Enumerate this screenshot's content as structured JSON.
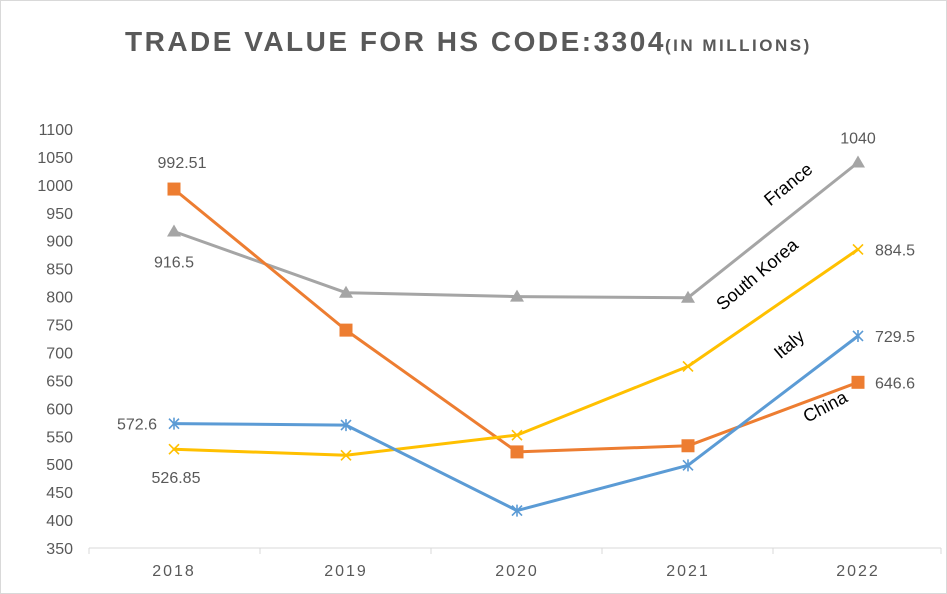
{
  "chart_data": {
    "type": "line",
    "title": "TRADE VALUE FOR HS CODE:3304",
    "subtitle": "(IN MILLIONS)",
    "xlabel": "",
    "ylabel": "",
    "categories": [
      "2018",
      "2019",
      "2020",
      "2021",
      "2022"
    ],
    "ylim": [
      350,
      1100
    ],
    "yticks": [
      350,
      400,
      450,
      500,
      550,
      600,
      650,
      700,
      750,
      800,
      850,
      900,
      950,
      1000,
      1050,
      1100
    ],
    "grid": false,
    "legend": "none",
    "series": [
      {
        "name": "France",
        "color": "#a5a5a5",
        "marker": "triangle",
        "values": [
          916.5,
          807,
          800,
          798,
          1040
        ],
        "data_labels": [
          {
            "index": 0,
            "text": "916.5"
          },
          {
            "index": 4,
            "text": "1040"
          }
        ]
      },
      {
        "name": "China",
        "color": "#ed7d31",
        "marker": "square",
        "values": [
          992.51,
          740,
          522,
          533,
          646.6
        ],
        "data_labels": [
          {
            "index": 0,
            "text": "992.51"
          },
          {
            "index": 4,
            "text": "646.6"
          }
        ]
      },
      {
        "name": "South Korea",
        "color": "#ffc000",
        "marker": "x",
        "values": [
          526.85,
          516,
          552,
          675,
          884.5
        ],
        "data_labels": [
          {
            "index": 0,
            "text": "526.85"
          },
          {
            "index": 4,
            "text": "884.5"
          }
        ]
      },
      {
        "name": "Italy",
        "color": "#5b9bd5",
        "marker": "star",
        "values": [
          572.6,
          570,
          417,
          498,
          729.5
        ],
        "data_labels": [
          {
            "index": 0,
            "text": "572.6"
          },
          {
            "index": 4,
            "text": "729.5"
          }
        ]
      }
    ],
    "annotations": [
      {
        "text": "France",
        "series": "France"
      },
      {
        "text": "South Korea",
        "series": "South Korea"
      },
      {
        "text": "Italy",
        "series": "Italy"
      },
      {
        "text": "China",
        "series": "China"
      }
    ]
  }
}
